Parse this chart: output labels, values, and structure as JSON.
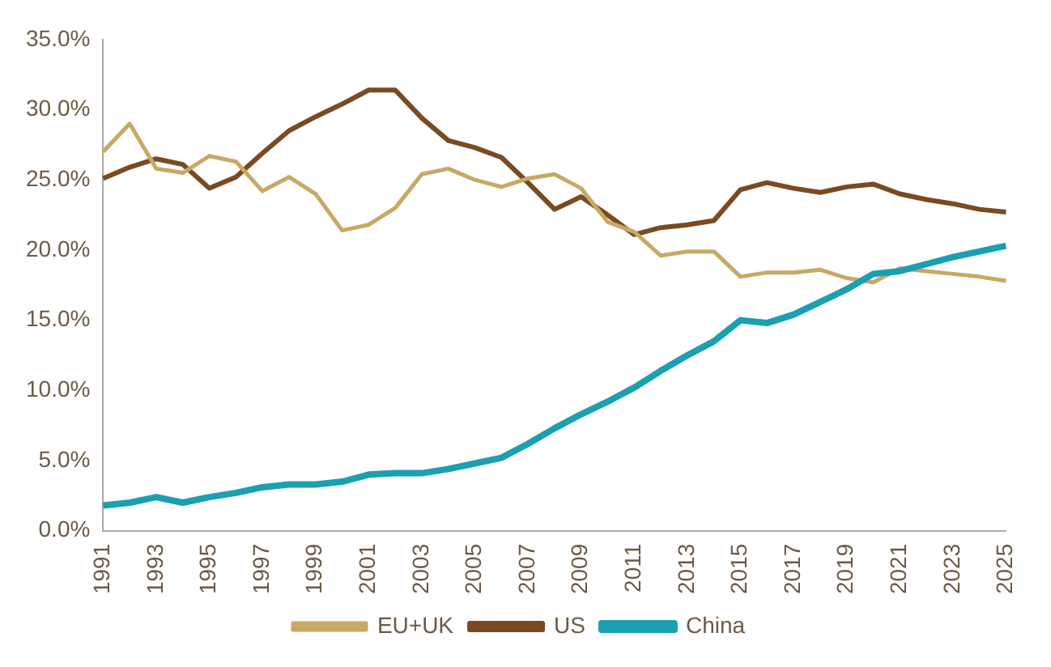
{
  "chart_data": {
    "type": "line",
    "categories": [
      "1991",
      null,
      "1993",
      null,
      "1995",
      null,
      "1997",
      null,
      "1999",
      null,
      "2001",
      null,
      "2003",
      null,
      "2005",
      null,
      "2007",
      null,
      "2009",
      null,
      "2011",
      null,
      "2013",
      null,
      "2015",
      null,
      "2017",
      null,
      "2019",
      null,
      "2021",
      null,
      "2023",
      null,
      "2025"
    ],
    "series": [
      {
        "name": "EU+UK",
        "color": "#c8a865",
        "values": [
          27.0,
          29.0,
          25.8,
          25.5,
          26.7,
          26.3,
          24.2,
          25.2,
          24.0,
          21.4,
          21.8,
          23.0,
          25.4,
          25.8,
          25.0,
          24.5,
          25.1,
          25.4,
          24.4,
          22.0,
          21.3,
          19.6,
          19.9,
          19.9,
          18.1,
          18.4,
          18.4,
          18.6,
          18.0,
          17.7,
          18.7,
          18.5,
          18.3,
          18.1,
          17.8
        ]
      },
      {
        "name": "US",
        "color": "#7a4a22",
        "values": [
          25.1,
          25.9,
          26.5,
          26.1,
          24.4,
          25.2,
          26.9,
          28.5,
          29.5,
          30.4,
          31.4,
          31.4,
          29.4,
          27.8,
          27.3,
          26.6,
          24.8,
          22.9,
          23.8,
          22.5,
          21.1,
          21.6,
          21.8,
          22.1,
          24.3,
          24.8,
          24.4,
          24.1,
          24.5,
          24.7,
          24.0,
          23.6,
          23.3,
          22.9,
          22.7
        ]
      },
      {
        "name": "China",
        "color": "#1aa0b0",
        "values": [
          1.8,
          2.0,
          2.4,
          2.0,
          2.4,
          2.7,
          3.1,
          3.3,
          3.3,
          3.5,
          4.0,
          4.1,
          4.1,
          4.4,
          4.8,
          5.2,
          6.2,
          7.3,
          8.3,
          9.2,
          10.2,
          11.4,
          12.5,
          13.5,
          15.0,
          14.8,
          15.4,
          16.3,
          17.2,
          18.3,
          18.5,
          19.0,
          19.5,
          19.9,
          20.3
        ]
      }
    ],
    "ylim": [
      0,
      35
    ],
    "yticks": [
      {
        "value": 0,
        "label": "0.0%"
      },
      {
        "value": 5,
        "label": "5.0%"
      },
      {
        "value": 10,
        "label": "10.0%"
      },
      {
        "value": 15,
        "label": "15.0%"
      },
      {
        "value": 20,
        "label": "20.0%"
      },
      {
        "value": 25,
        "label": "25.0%"
      },
      {
        "value": 30,
        "label": "30.0%"
      },
      {
        "value": 35,
        "label": "35.0%"
      }
    ],
    "grid": false,
    "legend": "bottom",
    "marker": "none",
    "line_style": "solid"
  }
}
